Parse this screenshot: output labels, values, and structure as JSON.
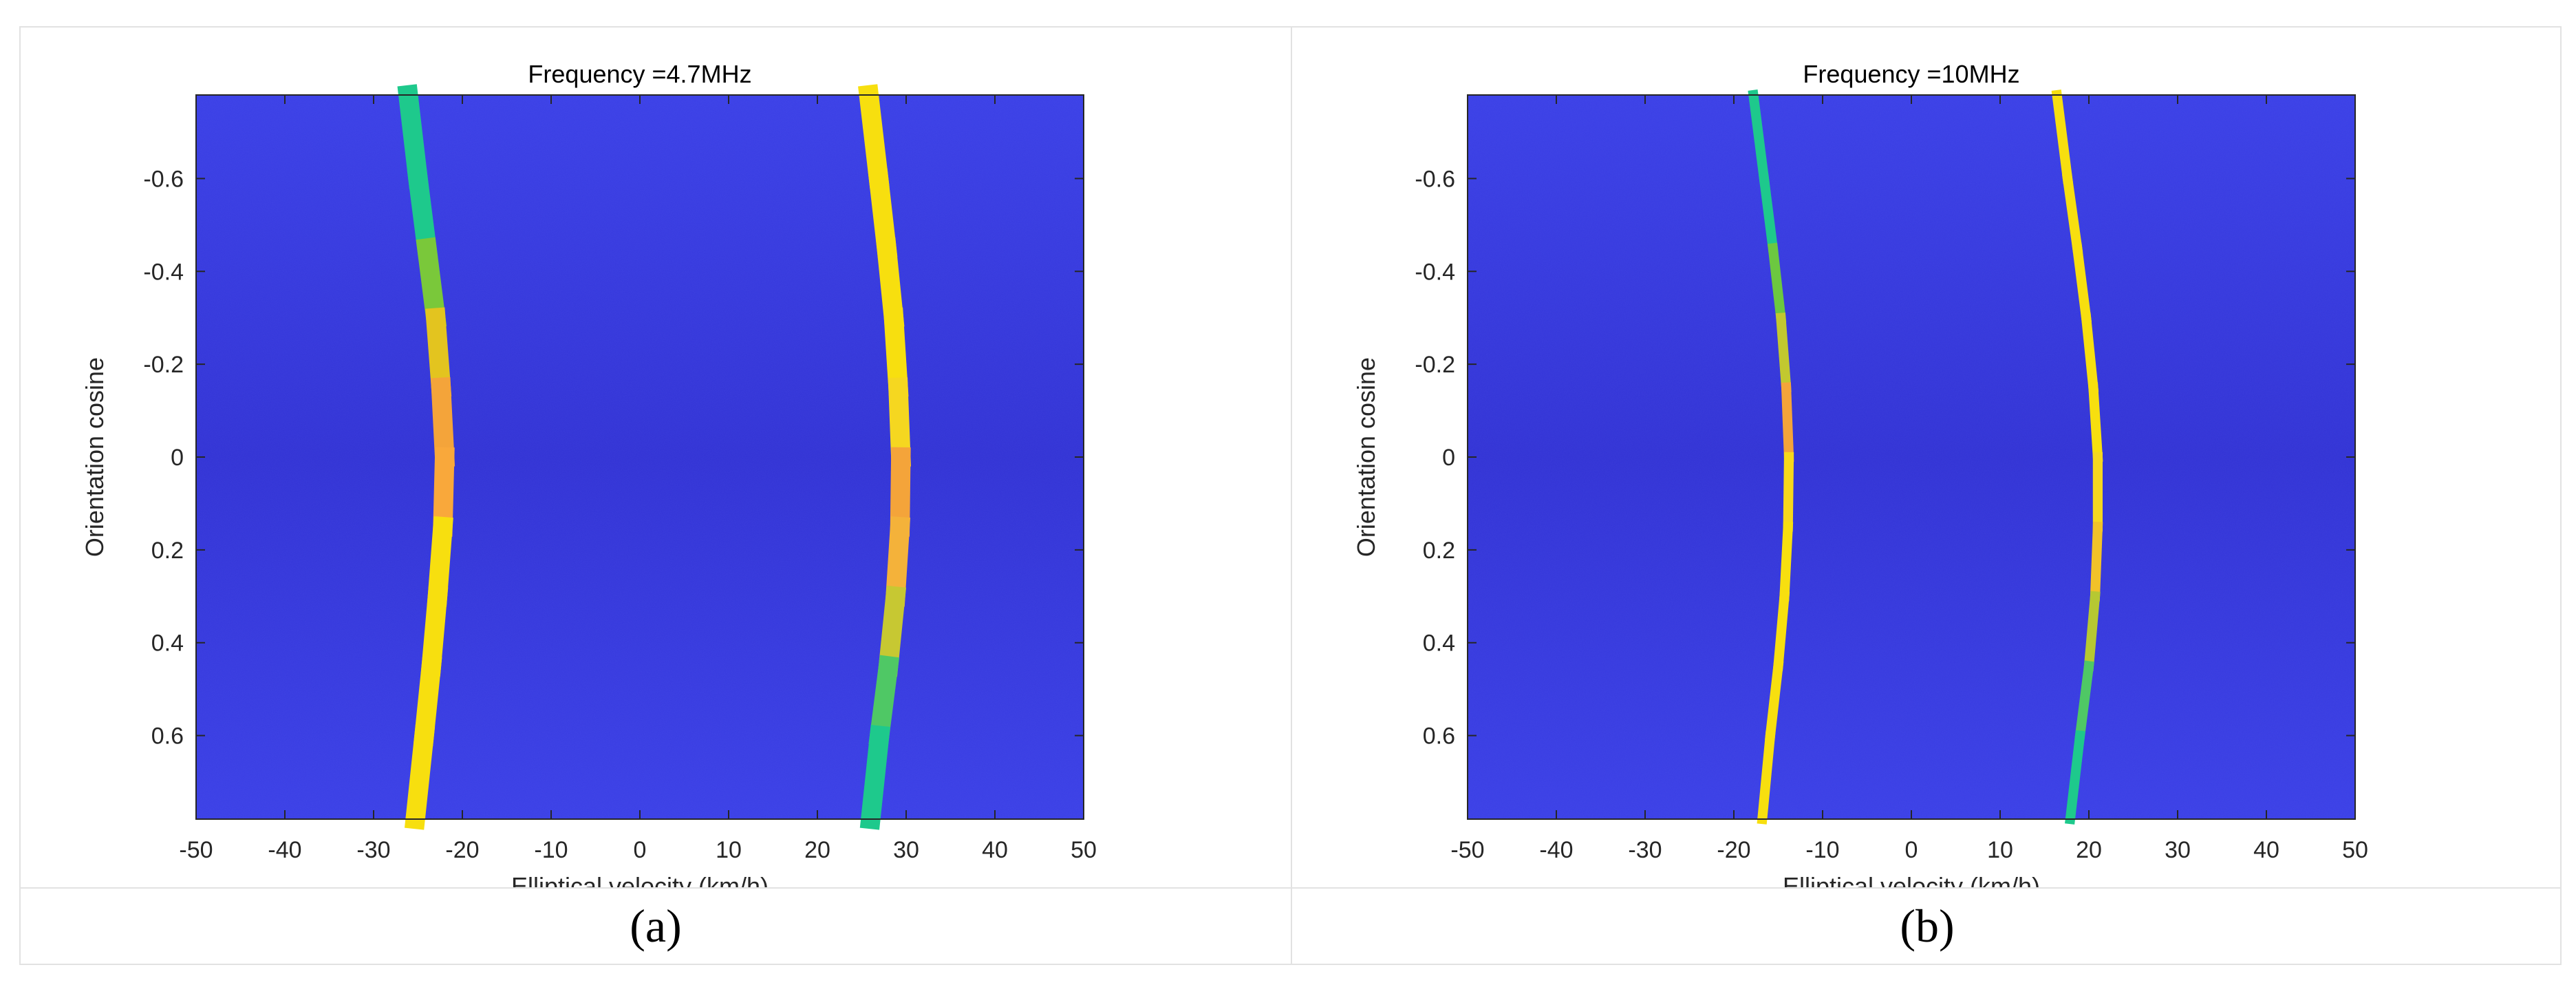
{
  "chart_data": [
    {
      "type": "heatmap",
      "title": "Frequency =4.7MHz",
      "xlabel": "Elliptical velocity (km/h)",
      "ylabel": "Orientation cosine",
      "xlim": [
        -50,
        50
      ],
      "ylim": [
        -0.78,
        0.78
      ],
      "y_reversed": true,
      "xticks": [
        -50,
        -40,
        -30,
        -20,
        -10,
        0,
        10,
        20,
        30,
        40,
        50
      ],
      "yticks": [
        -0.6,
        -0.4,
        -0.2,
        0,
        0.2,
        0.4,
        0.6
      ],
      "background_color": "#3a3fe6",
      "caption": "(a)",
      "curves": [
        {
          "points": [
            [
              -26.1,
              -0.78
            ],
            [
              -25.0,
              -0.6
            ],
            [
              -24.0,
              -0.45
            ],
            [
              -23.0,
              -0.3
            ],
            [
              -22.4,
              -0.15
            ],
            [
              -22.0,
              0.0
            ],
            [
              -22.2,
              0.15
            ],
            [
              -22.8,
              0.3
            ],
            [
              -23.5,
              0.45
            ],
            [
              -24.3,
              0.6
            ],
            [
              -25.3,
              0.78
            ]
          ],
          "colors": [
            "#1ec98c",
            "#1ec98c",
            "#7ac83a",
            "#e3c41f",
            "#f4a43a",
            "#f9a83b",
            "#f7df0f",
            "#f7df0f",
            "#f7df0f",
            "#f7df0f",
            "#f7df0f"
          ],
          "width": 2.2
        },
        {
          "points": [
            [
              25.8,
              -0.78
            ],
            [
              26.9,
              -0.6
            ],
            [
              27.8,
              -0.45
            ],
            [
              28.6,
              -0.3
            ],
            [
              29.1,
              -0.15
            ],
            [
              29.4,
              0.0
            ],
            [
              29.3,
              0.15
            ],
            [
              28.8,
              0.3
            ],
            [
              28.0,
              0.45
            ],
            [
              27.0,
              0.6
            ],
            [
              26.0,
              0.78
            ]
          ],
          "colors": [
            "#f7df0f",
            "#f7df0f",
            "#f7df0f",
            "#f7df0f",
            "#f5d720",
            "#f4a43a",
            "#f4b23a",
            "#c7c832",
            "#4fc865",
            "#1ec98c",
            "#1ec98c"
          ],
          "width": 2.2
        }
      ]
    },
    {
      "type": "heatmap",
      "title": "Frequency =10MHz",
      "xlabel": "Elliptical velocity (km/h)",
      "ylabel": "Orientation cosine",
      "xlim": [
        -50,
        50
      ],
      "ylim": [
        -0.78,
        0.78
      ],
      "y_reversed": true,
      "xticks": [
        -50,
        -40,
        -30,
        -20,
        -10,
        0,
        10,
        20,
        30,
        40,
        50
      ],
      "yticks": [
        -0.6,
        -0.4,
        -0.2,
        0,
        0.2,
        0.4,
        0.6
      ],
      "background_color": "#3a3fe6",
      "caption": "(b)",
      "curves": [
        {
          "points": [
            [
              -17.8,
              -0.78
            ],
            [
              -16.6,
              -0.6
            ],
            [
              -15.6,
              -0.45
            ],
            [
              -14.7,
              -0.3
            ],
            [
              -14.1,
              -0.15
            ],
            [
              -13.8,
              0.0
            ],
            [
              -13.9,
              0.15
            ],
            [
              -14.3,
              0.3
            ],
            [
              -15.0,
              0.45
            ],
            [
              -15.9,
              0.6
            ],
            [
              -16.8,
              0.78
            ]
          ],
          "colors": [
            "#1ec98c",
            "#1ec98c",
            "#6cc840",
            "#c2c82f",
            "#f4a43a",
            "#f7d81c",
            "#f7df0f",
            "#f7df0f",
            "#f7df0f",
            "#f7df0f",
            "#f7df0f"
          ],
          "width": 1.1
        },
        {
          "points": [
            [
              16.4,
              -0.78
            ],
            [
              17.6,
              -0.6
            ],
            [
              18.7,
              -0.45
            ],
            [
              19.7,
              -0.3
            ],
            [
              20.5,
              -0.15
            ],
            [
              21.0,
              0.0
            ],
            [
              21.0,
              0.15
            ],
            [
              20.7,
              0.3
            ],
            [
              20.0,
              0.45
            ],
            [
              19.0,
              0.6
            ],
            [
              17.9,
              0.78
            ]
          ],
          "colors": [
            "#f7df0f",
            "#f7df0f",
            "#f7df0f",
            "#f7df0f",
            "#f7df0f",
            "#f5d720",
            "#f1c229",
            "#b6c832",
            "#4fc865",
            "#1ec98c",
            "#1ec98c"
          ],
          "width": 1.1
        }
      ]
    }
  ]
}
